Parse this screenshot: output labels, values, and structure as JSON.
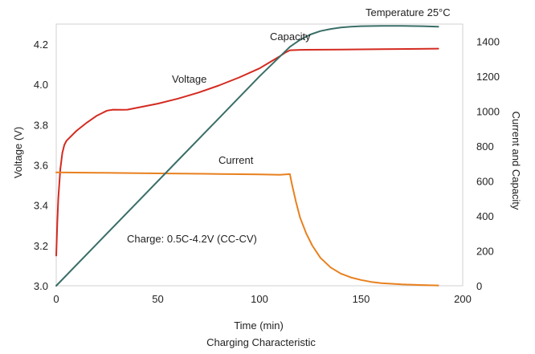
{
  "chart_data": {
    "type": "line",
    "title": "Charging Characteristic",
    "subtitle": "Temperature 25°C",
    "xlabel": "Time    (min)",
    "ylabel_left": "Voltage (V)",
    "ylabel_right": "Current and Capacity",
    "xlim": [
      0,
      200
    ],
    "ylim_left": [
      3.0,
      4.3
    ],
    "ylim_right": [
      0,
      1500
    ],
    "x_ticks": [
      0,
      50,
      100,
      150,
      200
    ],
    "y_left_ticks": [
      "3.0",
      "3.2",
      "3.4",
      "3.6",
      "3.8",
      "4.0",
      "4.2"
    ],
    "y_right_ticks": [
      "0",
      "200",
      "400",
      "600",
      "800",
      "1000",
      "1200",
      "1400"
    ],
    "grid": false,
    "annotations": [
      "Capacity",
      "Voltage",
      "Current",
      "Charge: 0.5C-4.2V (CC-CV)"
    ],
    "series": [
      {
        "name": "Voltage",
        "axis": "left",
        "color": "#d42a20",
        "x": [
          0,
          0.5,
          1,
          2,
          3,
          4,
          5,
          6,
          8,
          10,
          15,
          20,
          25,
          28,
          32,
          35,
          40,
          50,
          60,
          70,
          80,
          90,
          100,
          105,
          110,
          113,
          115,
          120,
          140,
          160,
          188
        ],
        "y": [
          3.15,
          3.31,
          3.43,
          3.58,
          3.66,
          3.7,
          3.72,
          3.73,
          3.75,
          3.77,
          3.81,
          3.845,
          3.87,
          3.875,
          3.874,
          3.875,
          3.885,
          3.905,
          3.93,
          3.96,
          3.995,
          4.035,
          4.08,
          4.11,
          4.14,
          4.16,
          4.17,
          4.172,
          4.173,
          4.175,
          4.178
        ]
      },
      {
        "name": "Current",
        "axis": "right",
        "color": "#e8801e",
        "x": [
          0,
          20,
          50,
          80,
          100,
          110,
          115,
          116,
          118,
          120,
          123,
          126,
          130,
          135,
          140,
          145,
          150,
          155,
          160,
          170,
          180,
          188
        ],
        "y": [
          650,
          648,
          644,
          641,
          638,
          636,
          640,
          580,
          480,
          390,
          300,
          230,
          160,
          105,
          70,
          48,
          33,
          22,
          15,
          8,
          4,
          2
        ]
      },
      {
        "name": "Capacity",
        "axis": "right",
        "color": "#3a6e68",
        "x": [
          0,
          20,
          40,
          60,
          80,
          100,
          115,
          120,
          125,
          130,
          135,
          140,
          145,
          150,
          160,
          170,
          180,
          188
        ],
        "y": [
          0,
          240,
          480,
          720,
          960,
          1200,
          1370,
          1410,
          1440,
          1460,
          1472,
          1480,
          1485,
          1488,
          1490,
          1490,
          1488,
          1485
        ]
      }
    ]
  }
}
